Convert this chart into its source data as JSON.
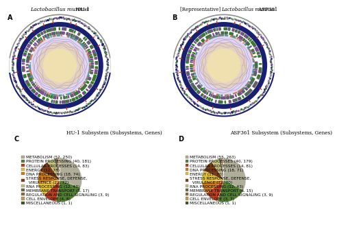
{
  "panel_C_title": "HU-1 Subsystem (Subsystems, Genes)",
  "panel_D_title": "ASF361 Subsystem (Subsystems, Genes)",
  "pie_C_labels": [
    "METABOLISM (52, 250)",
    "PROTEIN PROCESSING (40, 181)",
    "CELLULAR PROCESSES (14, 83)",
    "ENERGY (12, 78)",
    "DNA PROCESSING (18, 74)",
    "STRESS RESPONSE, DEFENSE,\n  VIRULENCE (21, 72)",
    "RNA PROCESSING (12, 43)",
    "MEMBRANE TRANSPORT (8, 17)",
    "REGULATION AND CELL SIGNALING (3, 9)",
    "CELL ENVELOPE (4, 8)",
    "MISCELLANEOUS (1, 1)"
  ],
  "pie_C_values": [
    250,
    181,
    83,
    78,
    74,
    72,
    43,
    17,
    9,
    8,
    1
  ],
  "pie_C_colors": [
    "#b0ae98",
    "#527d35",
    "#b84020",
    "#e0c030",
    "#cc7a18",
    "#7a3c14",
    "#c0c07a",
    "#686850",
    "#906840",
    "#c09858",
    "#3e5220"
  ],
  "pie_D_labels": [
    "METABOLISM (55, 263)",
    "PROTEIN PROCESSES (40, 179)",
    "CELLULAR PROCESSES (14, 81)",
    "DNA PROCESSING (18, 71)",
    "ENERGY (11, 70)",
    "STRESS RESPONSE, DEFENSE,\n  VIRULENCE (21, 70)",
    "RNA PROCESSING (12, 43)",
    "MEMBRANE TRANSPORT (6, 15)",
    "REGULATION AND CELL SIGNALING (3, 9)",
    "CELL ENVELOPE (3, 7)",
    "MISCELLANEOUS (1, 1)"
  ],
  "pie_D_values": [
    263,
    179,
    81,
    71,
    70,
    70,
    43,
    15,
    9,
    7,
    1
  ],
  "pie_D_colors": [
    "#b0ae98",
    "#527d35",
    "#b84020",
    "#cc7a18",
    "#e0c030",
    "#7a3c14",
    "#c0c07a",
    "#686850",
    "#906840",
    "#c09858",
    "#3e5220"
  ],
  "bg_color": "#ffffff",
  "label_fontsize": 4.2,
  "title_fontsize": 5.2,
  "panel_label_fontsize": 7
}
